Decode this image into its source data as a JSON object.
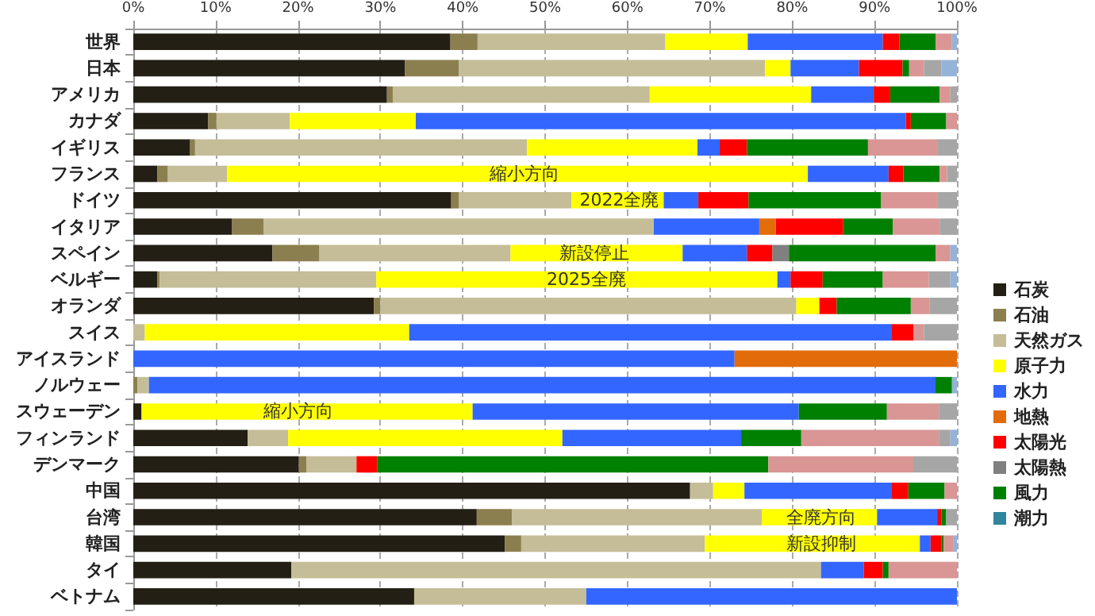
{
  "chart_data": {
    "type": "bar",
    "orientation": "horizontal",
    "stacked": true,
    "categories": [
      "世界",
      "日本",
      "アメリカ",
      "カナダ",
      "イギリス",
      "フランス",
      "ドイツ",
      "イタリア",
      "スペイン",
      "ベルギー",
      "オランダ",
      "スイス",
      "アイスランド",
      "ノルウェー",
      "スウェーデン",
      "フィンランド",
      "デンマーク",
      "中国",
      "台湾",
      "韓国",
      "タイ",
      "ベトナム"
    ],
    "series": [
      {
        "name": "石炭",
        "color": "#231f14",
        "values": [
          38.5,
          33.0,
          30.8,
          9.1,
          6.9,
          2.9,
          38.6,
          12.0,
          16.9,
          2.9,
          29.2,
          0,
          0,
          0,
          1.0,
          13.9,
          20.1,
          67.6,
          41.7,
          45.1,
          19.2,
          34.1
        ]
      },
      {
        "name": "石油",
        "color": "#8c7f4f",
        "values": [
          3.3,
          6.5,
          0.7,
          1.0,
          0.6,
          1.3,
          0.9,
          3.8,
          5.7,
          0.3,
          0.8,
          0,
          0,
          0.5,
          0,
          0,
          0.9,
          0,
          4.3,
          2.0,
          0,
          0
        ]
      },
      {
        "name": "天然ガス",
        "color": "#c4bd97",
        "values": [
          22.8,
          37.2,
          31.2,
          8.9,
          40.3,
          7.2,
          13.7,
          47.4,
          23.2,
          26.3,
          50.5,
          1.4,
          0,
          1.4,
          0,
          4.9,
          6.1,
          2.8,
          30.3,
          22.3,
          64.3,
          20.9
        ]
      },
      {
        "name": "原子力",
        "color": "#ffff00",
        "values": [
          10.0,
          3.1,
          19.6,
          15.3,
          20.7,
          70.5,
          11.2,
          0,
          20.9,
          48.7,
          2.8,
          32.1,
          0,
          0,
          40.2,
          33.3,
          0,
          3.8,
          14.0,
          26.1,
          0,
          0
        ]
      },
      {
        "name": "水力",
        "color": "#3366ff",
        "values": [
          16.4,
          8.3,
          7.6,
          59.5,
          2.7,
          9.8,
          4.2,
          12.8,
          7.8,
          1.6,
          0,
          58.6,
          73.0,
          95.5,
          39.6,
          21.7,
          0,
          17.9,
          7.3,
          1.3,
          5.2,
          45.0
        ]
      },
      {
        "name": "地熱",
        "color": "#e36c0a",
        "values": [
          0,
          0,
          0,
          0,
          0,
          0,
          0,
          2.0,
          0,
          0,
          0,
          0,
          27.0,
          0,
          0,
          0,
          0,
          0,
          0,
          0,
          0,
          0
        ]
      },
      {
        "name": "太陽光",
        "color": "#ff0000",
        "values": [
          2.0,
          5.3,
          2.0,
          0.6,
          3.3,
          1.8,
          6.1,
          8.2,
          3.1,
          3.9,
          2.1,
          2.6,
          0,
          0,
          0,
          0,
          2.5,
          2.0,
          0.5,
          1.3,
          2.3,
          0
        ]
      },
      {
        "name": "太陽熱",
        "color": "#808080",
        "values": [
          0,
          0,
          0,
          0,
          0,
          0,
          0,
          0,
          2.0,
          0,
          0,
          0,
          0,
          0,
          0,
          0,
          0,
          0,
          0,
          0,
          0,
          0
        ]
      },
      {
        "name": "風力",
        "color": "#008000",
        "values": [
          4.4,
          0.8,
          6.0,
          4.3,
          14.7,
          4.4,
          16.1,
          6.0,
          17.8,
          7.3,
          9.0,
          0,
          0,
          2.0,
          10.7,
          7.3,
          47.5,
          4.4,
          0.6,
          0.3,
          0.7,
          0
        ]
      },
      {
        "name": "潮力",
        "color": "#31859c",
        "values": [
          0,
          0,
          0,
          0,
          0,
          0,
          0,
          0,
          0,
          0,
          0,
          0,
          0,
          0,
          0,
          0,
          0,
          0,
          0,
          0,
          0,
          0
        ]
      },
      {
        "color": "#d99694",
        "values": [
          2.0,
          1.8,
          1.3,
          1.3,
          8.4,
          0.9,
          6.8,
          5.7,
          1.8,
          5.6,
          2.3,
          1.3,
          0,
          0,
          6.3,
          16.7,
          17.6,
          1.5,
          0,
          1.2,
          8.3,
          0
        ]
      },
      {
        "color": "#a6a6a6",
        "values": [
          0,
          2.1,
          0.8,
          0,
          2.4,
          1.2,
          2.4,
          2.1,
          0,
          2.6,
          3.3,
          4.0,
          0,
          0,
          2.2,
          1.4,
          5.3,
          0,
          1.3,
          0,
          0,
          0
        ]
      },
      {
        "color": "#95b3d7",
        "values": [
          0.6,
          1.9,
          0,
          0,
          0,
          0,
          0,
          0,
          0.8,
          0.8,
          0,
          0,
          0,
          0.6,
          0,
          0.8,
          0,
          0,
          0,
          0.4,
          0,
          0
        ]
      }
    ],
    "xlim": [
      0,
      100
    ],
    "xticks": [
      {
        "value": 0,
        "label": "0%"
      },
      {
        "value": 10,
        "label": "10%"
      },
      {
        "value": 20,
        "label": "20%"
      },
      {
        "value": 30,
        "label": "30%"
      },
      {
        "value": 40,
        "label": "40%"
      },
      {
        "value": 50,
        "label": "50%"
      },
      {
        "value": 60,
        "label": "60%"
      },
      {
        "value": 70,
        "label": "70%"
      },
      {
        "value": 80,
        "label": "80%"
      },
      {
        "value": 90,
        "label": "90%"
      },
      {
        "value": 100,
        "label": "100%"
      }
    ],
    "grid": "x",
    "legend": "right",
    "annotations": [
      {
        "text": "縮小方向",
        "x": 47.5,
        "y": "フランス"
      },
      {
        "text": "2022全廃",
        "x": 59,
        "y": "ドイツ"
      },
      {
        "text": "新設停止",
        "x": 56,
        "y": "スペイン"
      },
      {
        "text": "2025全廃",
        "x": 55,
        "y": "ベルギー"
      },
      {
        "text": "縮小方向",
        "x": 20,
        "y": "スウェーデン"
      },
      {
        "text": "全廃方向",
        "x": 83.5,
        "y": "台湾"
      },
      {
        "text": "新設抑制",
        "x": 83.5,
        "y": "韓国"
      }
    ]
  }
}
